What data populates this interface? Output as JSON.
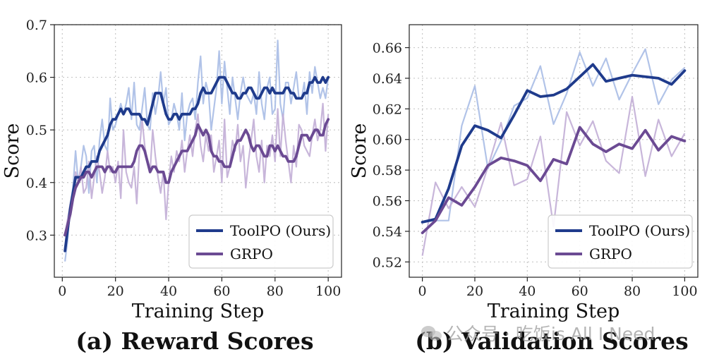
{
  "chart_data": [
    {
      "type": "line",
      "caption": "(a) Reward Scores",
      "xlabel": "Training Step",
      "ylabel": "Score",
      "xlim": [
        -3,
        105
      ],
      "ylim": [
        0.22,
        0.7
      ],
      "xticks": [
        0,
        20,
        40,
        60,
        80,
        100
      ],
      "xtick_labels": [
        "0",
        "20",
        "40",
        "60",
        "80",
        "100"
      ],
      "yticks": [
        0.3,
        0.4,
        0.5,
        0.6,
        0.7
      ],
      "ytick_labels": [
        "0.3",
        "0.4",
        "0.5",
        "0.6",
        "0.7"
      ],
      "grid": true,
      "legend_position": "bottom-right",
      "series": [
        {
          "name": "ToolPO (Ours)",
          "color": "#1f3b8c",
          "raw_color": "#a8bde6",
          "x": [
            1,
            2,
            3,
            4,
            5,
            6,
            7,
            8,
            9,
            10,
            11,
            12,
            13,
            14,
            15,
            16,
            17,
            18,
            19,
            20,
            21,
            22,
            23,
            24,
            25,
            26,
            27,
            28,
            29,
            30,
            31,
            32,
            33,
            34,
            35,
            36,
            37,
            38,
            39,
            40,
            41,
            42,
            43,
            44,
            45,
            46,
            47,
            48,
            49,
            50,
            51,
            52,
            53,
            54,
            55,
            56,
            57,
            58,
            59,
            60,
            61,
            62,
            63,
            64,
            65,
            66,
            67,
            68,
            69,
            70,
            71,
            72,
            73,
            74,
            75,
            76,
            77,
            78,
            79,
            80,
            81,
            82,
            83,
            84,
            85,
            86,
            87,
            88,
            89,
            90,
            91,
            92,
            93,
            94,
            95,
            96,
            97,
            98,
            99,
            100
          ],
          "raw": [
            0.25,
            0.29,
            0.36,
            0.39,
            0.46,
            0.4,
            0.43,
            0.47,
            0.45,
            0.38,
            0.46,
            0.47,
            0.4,
            0.48,
            0.52,
            0.47,
            0.46,
            0.56,
            0.5,
            0.51,
            0.53,
            0.55,
            0.53,
            0.55,
            0.58,
            0.52,
            0.59,
            0.51,
            0.5,
            0.54,
            0.58,
            0.51,
            0.5,
            0.57,
            0.53,
            0.56,
            0.61,
            0.55,
            0.58,
            0.51,
            0.52,
            0.55,
            0.53,
            0.5,
            0.57,
            0.48,
            0.53,
            0.55,
            0.56,
            0.52,
            0.59,
            0.64,
            0.55,
            0.59,
            0.57,
            0.5,
            0.54,
            0.58,
            0.65,
            0.55,
            0.63,
            0.58,
            0.53,
            0.6,
            0.56,
            0.52,
            0.57,
            0.6,
            0.57,
            0.56,
            0.55,
            0.57,
            0.53,
            0.61,
            0.55,
            0.52,
            0.58,
            0.6,
            0.53,
            0.54,
            0.67,
            0.55,
            0.52,
            0.59,
            0.59,
            0.55,
            0.58,
            0.61,
            0.56,
            0.56,
            0.59,
            0.53,
            0.61,
            0.57,
            0.62,
            0.59,
            0.56,
            0.58,
            0.56,
            0.6
          ],
          "smoothed": [
            0.27,
            0.31,
            0.35,
            0.38,
            0.41,
            0.41,
            0.41,
            0.42,
            0.43,
            0.43,
            0.44,
            0.44,
            0.44,
            0.46,
            0.47,
            0.48,
            0.49,
            0.51,
            0.52,
            0.52,
            0.53,
            0.54,
            0.53,
            0.54,
            0.54,
            0.53,
            0.53,
            0.53,
            0.53,
            0.52,
            0.52,
            0.51,
            0.53,
            0.55,
            0.57,
            0.57,
            0.57,
            0.55,
            0.53,
            0.52,
            0.52,
            0.53,
            0.53,
            0.52,
            0.53,
            0.53,
            0.53,
            0.53,
            0.54,
            0.54,
            0.55,
            0.57,
            0.58,
            0.57,
            0.57,
            0.57,
            0.58,
            0.59,
            0.6,
            0.6,
            0.6,
            0.59,
            0.58,
            0.57,
            0.57,
            0.56,
            0.56,
            0.57,
            0.57,
            0.58,
            0.58,
            0.57,
            0.56,
            0.56,
            0.57,
            0.58,
            0.58,
            0.57,
            0.58,
            0.57,
            0.57,
            0.57,
            0.57,
            0.58,
            0.58,
            0.57,
            0.57,
            0.56,
            0.56,
            0.56,
            0.57,
            0.57,
            0.59,
            0.59,
            0.6,
            0.59,
            0.59,
            0.6,
            0.59,
            0.6
          ]
        },
        {
          "name": "GRPO",
          "color": "#6b4a93",
          "raw_color": "#c2aed6",
          "x": [
            1,
            2,
            3,
            4,
            5,
            6,
            7,
            8,
            9,
            10,
            11,
            12,
            13,
            14,
            15,
            16,
            17,
            18,
            19,
            20,
            21,
            22,
            23,
            24,
            25,
            26,
            27,
            28,
            29,
            30,
            31,
            32,
            33,
            34,
            35,
            36,
            37,
            38,
            39,
            40,
            41,
            42,
            43,
            44,
            45,
            46,
            47,
            48,
            49,
            50,
            51,
            52,
            53,
            54,
            55,
            56,
            57,
            58,
            59,
            60,
            61,
            62,
            63,
            64,
            65,
            66,
            67,
            68,
            69,
            70,
            71,
            72,
            73,
            74,
            75,
            76,
            77,
            78,
            79,
            80,
            81,
            82,
            83,
            84,
            85,
            86,
            87,
            88,
            89,
            90,
            91,
            92,
            93,
            94,
            95,
            96,
            97,
            98,
            99,
            100
          ],
          "raw": [
            0.3,
            0.33,
            0.36,
            0.38,
            0.42,
            0.4,
            0.43,
            0.38,
            0.39,
            0.44,
            0.37,
            0.41,
            0.45,
            0.42,
            0.38,
            0.41,
            0.46,
            0.42,
            0.43,
            0.4,
            0.44,
            0.37,
            0.5,
            0.42,
            0.4,
            0.39,
            0.43,
            0.36,
            0.46,
            0.52,
            0.47,
            0.44,
            0.42,
            0.5,
            0.45,
            0.41,
            0.38,
            0.42,
            0.33,
            0.4,
            0.45,
            0.42,
            0.46,
            0.44,
            0.48,
            0.42,
            0.46,
            0.49,
            0.45,
            0.5,
            0.53,
            0.47,
            0.44,
            0.49,
            0.46,
            0.49,
            0.42,
            0.45,
            0.48,
            0.4,
            0.52,
            0.41,
            0.43,
            0.48,
            0.46,
            0.51,
            0.44,
            0.47,
            0.39,
            0.44,
            0.48,
            0.52,
            0.45,
            0.42,
            0.48,
            0.4,
            0.47,
            0.45,
            0.49,
            0.44,
            0.54,
            0.45,
            0.53,
            0.48,
            0.44,
            0.4,
            0.47,
            0.43,
            0.51,
            0.5,
            0.47,
            0.46,
            0.45,
            0.49,
            0.52,
            0.48,
            0.5,
            0.55,
            0.46,
            0.53
          ],
          "smoothed": [
            0.3,
            0.32,
            0.34,
            0.37,
            0.39,
            0.4,
            0.41,
            0.41,
            0.42,
            0.42,
            0.41,
            0.42,
            0.43,
            0.43,
            0.43,
            0.42,
            0.43,
            0.43,
            0.42,
            0.42,
            0.43,
            0.43,
            0.43,
            0.43,
            0.43,
            0.43,
            0.44,
            0.46,
            0.47,
            0.47,
            0.46,
            0.44,
            0.42,
            0.43,
            0.43,
            0.42,
            0.42,
            0.42,
            0.4,
            0.4,
            0.42,
            0.43,
            0.44,
            0.45,
            0.46,
            0.46,
            0.46,
            0.47,
            0.48,
            0.49,
            0.51,
            0.5,
            0.49,
            0.5,
            0.49,
            0.46,
            0.45,
            0.45,
            0.44,
            0.44,
            0.43,
            0.43,
            0.43,
            0.45,
            0.47,
            0.48,
            0.48,
            0.49,
            0.5,
            0.49,
            0.47,
            0.46,
            0.47,
            0.47,
            0.46,
            0.45,
            0.45,
            0.47,
            0.47,
            0.46,
            0.47,
            0.46,
            0.45,
            0.45,
            0.44,
            0.44,
            0.44,
            0.45,
            0.47,
            0.49,
            0.49,
            0.49,
            0.48,
            0.49,
            0.5,
            0.5,
            0.49,
            0.49,
            0.51,
            0.52
          ]
        }
      ]
    },
    {
      "type": "line",
      "caption": "(b) Validation Scores",
      "xlabel": "Training Step",
      "ylabel": "Score",
      "xlim": [
        -5,
        105
      ],
      "ylim": [
        0.51,
        0.675
      ],
      "xticks": [
        0,
        20,
        40,
        60,
        80,
        100
      ],
      "xtick_labels": [
        "0",
        "20",
        "40",
        "60",
        "80",
        "100"
      ],
      "yticks": [
        0.52,
        0.54,
        0.56,
        0.58,
        0.6,
        0.62,
        0.64,
        0.66
      ],
      "ytick_labels": [
        "0.52",
        "0.54",
        "0.56",
        "0.58",
        "0.60",
        "0.62",
        "0.64",
        "0.66"
      ],
      "grid": true,
      "legend_position": "bottom-right",
      "series": [
        {
          "name": "ToolPO (Ours)",
          "color": "#1f3b8c",
          "raw_color": "#a8bde6",
          "x": [
            0,
            5,
            10,
            15,
            20,
            25,
            30,
            35,
            40,
            45,
            50,
            55,
            60,
            65,
            70,
            75,
            80,
            85,
            90,
            95,
            100
          ],
          "raw": [
            0.546,
            0.547,
            0.547,
            0.609,
            0.635,
            0.581,
            0.599,
            0.622,
            0.627,
            0.648,
            0.61,
            0.63,
            0.657,
            0.635,
            0.653,
            0.626,
            0.643,
            0.659,
            0.623,
            0.639,
            0.647
          ],
          "smoothed": [
            0.546,
            0.548,
            0.568,
            0.596,
            0.609,
            0.606,
            0.601,
            0.616,
            0.632,
            0.628,
            0.629,
            0.633,
            0.641,
            0.649,
            0.638,
            0.64,
            0.642,
            0.641,
            0.64,
            0.636,
            0.645
          ]
        },
        {
          "name": "GRPO",
          "color": "#6b4a93",
          "raw_color": "#c2aed6",
          "x": [
            0,
            5,
            10,
            15,
            20,
            25,
            30,
            35,
            40,
            45,
            50,
            55,
            60,
            65,
            70,
            75,
            80,
            85,
            90,
            95,
            100
          ],
          "raw": [
            0.524,
            0.572,
            0.555,
            0.569,
            0.556,
            0.582,
            0.611,
            0.57,
            0.574,
            0.602,
            0.543,
            0.618,
            0.596,
            0.612,
            0.586,
            0.578,
            0.628,
            0.576,
            0.613,
            0.589,
            0.604
          ],
          "smoothed": [
            0.539,
            0.547,
            0.562,
            0.557,
            0.569,
            0.583,
            0.588,
            0.586,
            0.583,
            0.573,
            0.587,
            0.584,
            0.608,
            0.597,
            0.592,
            0.597,
            0.594,
            0.606,
            0.593,
            0.602,
            0.599
          ]
        }
      ]
    }
  ],
  "watermark": "公众号 · 吃饭is All I Need"
}
